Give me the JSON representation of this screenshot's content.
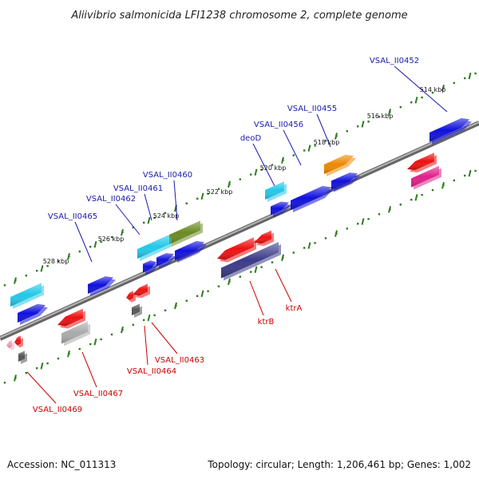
{
  "title": "Aliivibrio salmonicida LFI1238 chromosome 2, complete genome",
  "footer": {
    "accession": "Accession: NC_011313",
    "summary": "Topology: circular; Length: 1,206,461 bp; Genes: 1,002"
  },
  "colors": {
    "backbone": "#888888",
    "tick": "#2e7d1e",
    "forward_label": "#1a1aaa",
    "reverse_label": "#cc0000"
  },
  "tick_labels": [
    "514 kbp",
    "516 kbp",
    "518 kbp",
    "520 kbp",
    "522 kbp",
    "524 kbp",
    "526 kbp",
    "528 kbp"
  ],
  "forward_gene_labels": [
    "VSAL_II0452",
    "VSAL_II0455",
    "VSAL_II0456",
    "deoD",
    "VSAL_II0460",
    "VSAL_II0461",
    "VSAL_II0462",
    "VSAL_II0465"
  ],
  "reverse_gene_labels": [
    "ktrA",
    "ktrB",
    "VSAL_II0463",
    "VSAL_II0464",
    "VSAL_II0467",
    "VSAL_II0469"
  ],
  "gene_colors": {
    "blue": "#1010dd",
    "cyan": "#22c8e8",
    "olive": "#6a8a22",
    "orange": "#ee8800",
    "red": "#ee1111",
    "magenta": "#e0208a",
    "navy": "#3a3a88",
    "gray": "#aaaaaa",
    "darkgray": "#555555",
    "pink": "#f0a0c0"
  }
}
